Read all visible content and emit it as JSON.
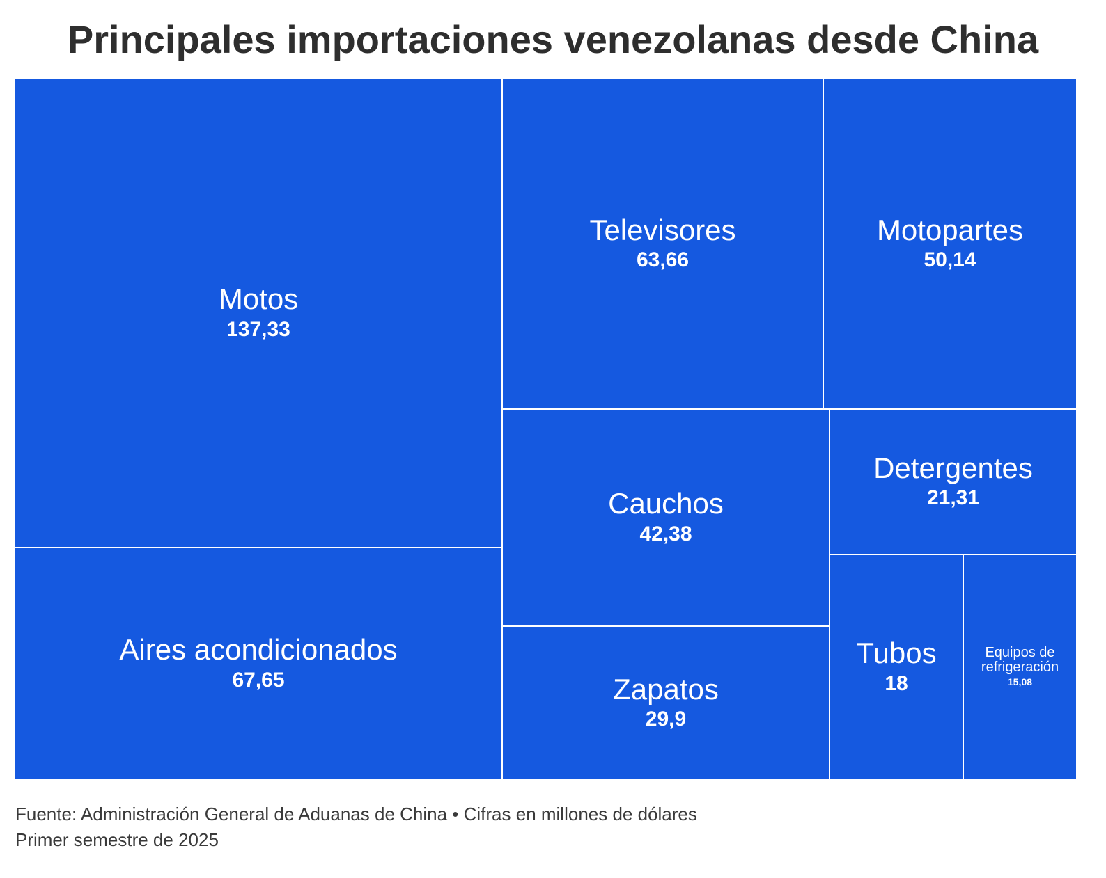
{
  "title": "Principales importaciones venezolanas desde China",
  "footer": {
    "source": "Fuente: Administración General de Aduanas de China • Cifras en millones de dólares",
    "period": "Primer semestre de 2025"
  },
  "colors": {
    "tile": "#1559e0",
    "border": "#ffffff",
    "title": "#2e2e2e"
  },
  "chart_data": {
    "type": "treemap",
    "title": "Principales importaciones venezolanas desde China",
    "items": [
      {
        "label": "Motos",
        "value": 137.33,
        "display": "137,33"
      },
      {
        "label": "Aires acondicionados",
        "value": 67.65,
        "display": "67,65"
      },
      {
        "label": "Televisores",
        "value": 63.66,
        "display": "63,66"
      },
      {
        "label": "Motopartes",
        "value": 50.14,
        "display": "50,14"
      },
      {
        "label": "Cauchos",
        "value": 42.38,
        "display": "42,38"
      },
      {
        "label": "Zapatos",
        "value": 29.9,
        "display": "29,9"
      },
      {
        "label": "Detergentes",
        "value": 21.31,
        "display": "21,31"
      },
      {
        "label": "Tubos",
        "value": 18,
        "display": "18"
      },
      {
        "label": "Equipos de refrigeración",
        "value": 15.08,
        "display": "15,08"
      }
    ]
  }
}
